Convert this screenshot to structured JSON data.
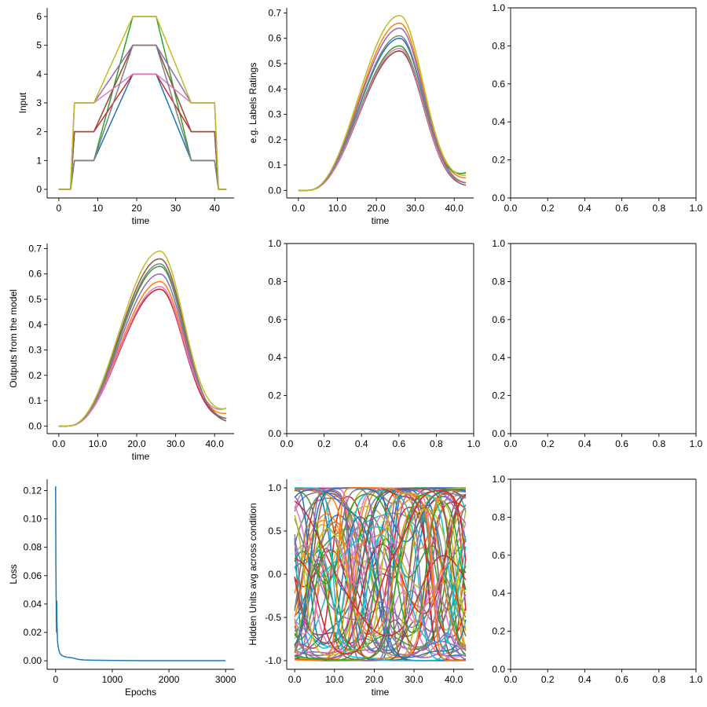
{
  "colors": {
    "palette": [
      "#1f77b4",
      "#ff7f0e",
      "#2ca02c",
      "#d62728",
      "#9467bd",
      "#8c564b",
      "#e377c2",
      "#7f7f7f",
      "#bcbd22",
      "#17becf"
    ],
    "axis": "#000000",
    "background": "#ffffff"
  },
  "chart_data": [
    {
      "id": "input",
      "type": "line",
      "xlabel": "time",
      "ylabel": "Input",
      "xlim": [
        -3,
        45
      ],
      "ylim": [
        -0.3,
        6.3
      ],
      "xticks": [
        0,
        10,
        20,
        30,
        40
      ],
      "yticks": [
        0,
        1,
        2,
        3,
        4,
        5,
        6
      ],
      "spines": "left-bottom",
      "series": [
        {
          "color": "#1f77b4",
          "x": [
            0,
            3,
            4,
            9,
            19,
            25,
            34,
            40,
            41,
            43
          ],
          "y": [
            0,
            0,
            1,
            1,
            4,
            4,
            1,
            1,
            0,
            0
          ]
        },
        {
          "color": "#ff7f0e",
          "x": [
            0,
            3,
            4,
            9,
            19,
            25,
            34,
            40,
            41,
            43
          ],
          "y": [
            0,
            0,
            2,
            2,
            5,
            5,
            2,
            2,
            0,
            0
          ]
        },
        {
          "color": "#2ca02c",
          "x": [
            0,
            3,
            4,
            9,
            19,
            25,
            34,
            40,
            41,
            43
          ],
          "y": [
            0,
            0,
            1,
            1,
            6,
            6,
            1,
            1,
            0,
            0
          ]
        },
        {
          "color": "#d62728",
          "x": [
            0,
            3,
            4,
            9,
            19,
            25,
            34,
            40,
            41,
            43
          ],
          "y": [
            0,
            0,
            2,
            2,
            4,
            4,
            2,
            2,
            0,
            0
          ]
        },
        {
          "color": "#9467bd",
          "x": [
            0,
            3,
            4,
            9,
            19,
            25,
            34,
            40,
            41,
            43
          ],
          "y": [
            0,
            0,
            3,
            3,
            5,
            5,
            3,
            3,
            0,
            0
          ]
        },
        {
          "color": "#8c564b",
          "x": [
            0,
            3,
            4,
            9,
            19,
            25,
            34,
            40,
            41,
            43
          ],
          "y": [
            0,
            0,
            2,
            2,
            5,
            5,
            2,
            2,
            0,
            0
          ]
        },
        {
          "color": "#e377c2",
          "x": [
            0,
            3,
            4,
            9,
            19,
            25,
            34,
            40,
            41,
            43
          ],
          "y": [
            0,
            0,
            3,
            3,
            4,
            4,
            3,
            3,
            0,
            0
          ]
        },
        {
          "color": "#7f7f7f",
          "x": [
            0,
            3,
            4,
            9,
            19,
            25,
            34,
            40,
            41,
            43
          ],
          "y": [
            0,
            0,
            1,
            1,
            5,
            5,
            1,
            1,
            0,
            0
          ]
        },
        {
          "color": "#bcbd22",
          "x": [
            0,
            3,
            4,
            9,
            19,
            25,
            34,
            40,
            41,
            43
          ],
          "y": [
            0,
            0,
            3,
            3,
            6,
            6,
            3,
            3,
            0,
            0
          ]
        }
      ]
    },
    {
      "id": "labels",
      "type": "line",
      "xlabel": "time",
      "ylabel": "e.g. Labels Ratings",
      "xlim": [
        -3,
        45
      ],
      "ylim": [
        -0.03,
        0.72
      ],
      "xticks": [
        0,
        10,
        20,
        30,
        40
      ],
      "yticks": [
        0.0,
        0.1,
        0.2,
        0.3,
        0.4,
        0.5,
        0.6,
        0.7
      ],
      "tick_format": "fixed1",
      "spines": "left-bottom",
      "curve": "bump",
      "series": [
        {
          "color": "#1f77b4",
          "peak": 0.6,
          "end": 0.07
        },
        {
          "color": "#ff7f0e",
          "peak": 0.66,
          "end": 0.05
        },
        {
          "color": "#2ca02c",
          "peak": 0.57,
          "end": 0.07
        },
        {
          "color": "#d62728",
          "peak": 0.55,
          "end": 0.03
        },
        {
          "color": "#9467bd",
          "peak": 0.64,
          "end": 0.03
        },
        {
          "color": "#8c564b",
          "peak": 0.55,
          "end": 0.02
        },
        {
          "color": "#e377c2",
          "peak": 0.56,
          "end": 0.03
        },
        {
          "color": "#7f7f7f",
          "peak": 0.61,
          "end": 0.03
        },
        {
          "color": "#bcbd22",
          "peak": 0.69,
          "end": 0.06
        }
      ]
    },
    {
      "id": "empty-r1c3",
      "type": "empty",
      "xlim": [
        0,
        1
      ],
      "ylim": [
        0,
        1
      ],
      "xticks": [
        0.0,
        0.2,
        0.4,
        0.6,
        0.8,
        1.0
      ],
      "yticks": [
        0.0,
        0.2,
        0.4,
        0.6,
        0.8,
        1.0
      ],
      "tick_format": "fixed1",
      "spines": "all"
    },
    {
      "id": "outputs",
      "type": "line",
      "xlabel": "time",
      "ylabel": "Outputs from the model",
      "xlim": [
        -3,
        45
      ],
      "ylim": [
        -0.03,
        0.72
      ],
      "xticks": [
        0,
        10,
        20,
        30,
        40
      ],
      "yticks": [
        0.0,
        0.1,
        0.2,
        0.3,
        0.4,
        0.5,
        0.6,
        0.7
      ],
      "tick_format": "fixed1",
      "spines": "left-bottom",
      "curve": "bump",
      "series": [
        {
          "color": "#1f77b4",
          "peak": 0.54,
          "end": 0.03
        },
        {
          "color": "#ff7f0e",
          "peak": 0.57,
          "end": 0.05
        },
        {
          "color": "#2ca02c",
          "peak": 0.63,
          "end": 0.03
        },
        {
          "color": "#d62728",
          "peak": 0.54,
          "end": 0.03
        },
        {
          "color": "#9467bd",
          "peak": 0.6,
          "end": 0.03
        },
        {
          "color": "#8c564b",
          "peak": 0.66,
          "end": 0.02
        },
        {
          "color": "#e377c2",
          "peak": 0.55,
          "end": 0.07
        },
        {
          "color": "#7f7f7f",
          "peak": 0.64,
          "end": 0.03
        },
        {
          "color": "#bcbd22",
          "peak": 0.69,
          "end": 0.07
        }
      ]
    },
    {
      "id": "empty-r2c2",
      "type": "empty",
      "xlim": [
        0,
        1
      ],
      "ylim": [
        0,
        1
      ],
      "xticks": [
        0.0,
        0.2,
        0.4,
        0.6,
        0.8,
        1.0
      ],
      "yticks": [
        0.0,
        0.2,
        0.4,
        0.6,
        0.8,
        1.0
      ],
      "tick_format": "fixed1",
      "spines": "all"
    },
    {
      "id": "empty-r2c3",
      "type": "empty",
      "xlim": [
        0,
        1
      ],
      "ylim": [
        0,
        1
      ],
      "xticks": [
        0.0,
        0.2,
        0.4,
        0.6,
        0.8,
        1.0
      ],
      "yticks": [
        0.0,
        0.2,
        0.4,
        0.6,
        0.8,
        1.0
      ],
      "tick_format": "fixed1",
      "spines": "all"
    },
    {
      "id": "loss",
      "type": "line",
      "xlabel": "Epochs",
      "ylabel": "Loss",
      "xlim": [
        -150,
        3150
      ],
      "ylim": [
        -0.006,
        0.128
      ],
      "xticks": [
        0,
        1000,
        2000,
        3000
      ],
      "yticks": [
        0.0,
        0.02,
        0.04,
        0.06,
        0.08,
        0.1,
        0.12
      ],
      "tick_format": "loss",
      "spines": "left-bottom",
      "series": [
        {
          "color": "#1f77b4",
          "x": [
            0,
            4,
            8,
            12,
            16,
            20,
            24,
            28,
            32,
            36,
            40,
            45,
            50,
            60,
            80,
            100,
            150,
            200,
            300,
            400,
            500,
            700,
            1000,
            1500,
            2000,
            2500,
            3000
          ],
          "y": [
            0.123,
            0.07,
            0.05,
            0.03,
            0.02,
            0.042,
            0.025,
            0.02,
            0.016,
            0.013,
            0.011,
            0.01,
            0.009,
            0.007,
            0.005,
            0.004,
            0.003,
            0.0025,
            0.002,
            0.001,
            0.0006,
            0.0004,
            0.0002,
            0.0001,
            0.0001,
            0.0001,
            0.0001
          ]
        }
      ]
    },
    {
      "id": "hidden",
      "type": "line",
      "xlabel": "time",
      "ylabel": "Hidden Units avg across condition",
      "xlim": [
        -2,
        45
      ],
      "ylim": [
        -1.1,
        1.1
      ],
      "xticks": [
        0,
        10,
        20,
        30,
        40
      ],
      "yticks": [
        -1.0,
        -0.5,
        0.0,
        0.5,
        1.0
      ],
      "tick_format": "fixed1",
      "spines": "left-bottom",
      "curve": "hidden-units",
      "unit_count": 64,
      "t_max": 43
    },
    {
      "id": "empty-r3c3",
      "type": "empty",
      "xlim": [
        0,
        1
      ],
      "ylim": [
        0,
        1
      ],
      "xticks": [
        0.0,
        0.2,
        0.4,
        0.6,
        0.8,
        1.0
      ],
      "yticks": [
        0.0,
        0.2,
        0.4,
        0.6,
        0.8,
        1.0
      ],
      "tick_format": "fixed1",
      "spines": "all"
    }
  ]
}
